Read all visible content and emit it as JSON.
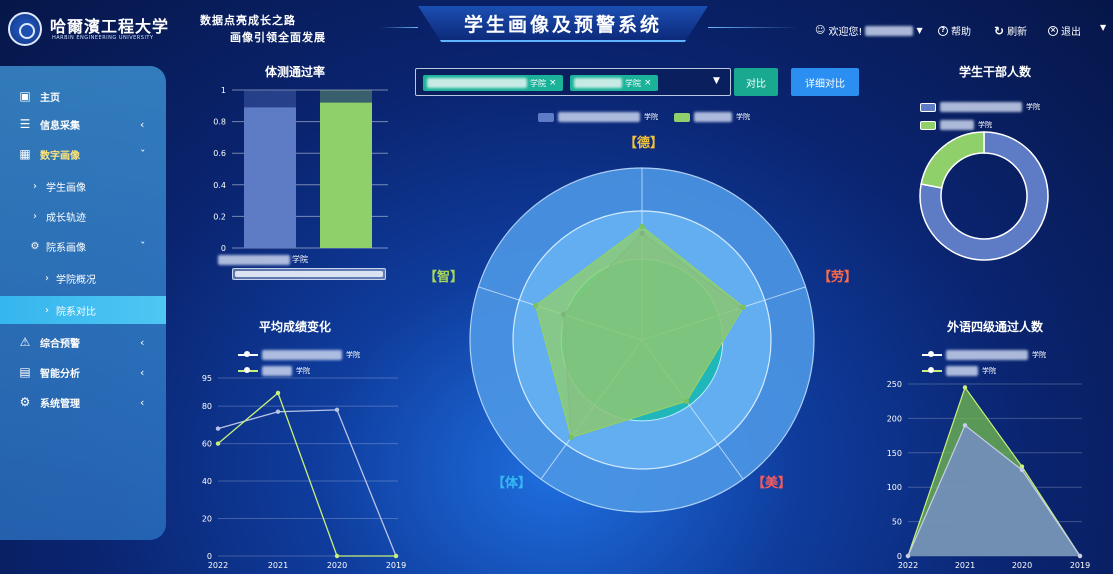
{
  "header": {
    "university_cn": "哈爾濱工程大学",
    "university_en": "HARBIN ENGINEERING UNIVERSITY",
    "slogan_line1": "数据点亮成长之路",
    "slogan_line2": "画像引领全面发展",
    "system_title": "学生画像及预警系统",
    "welcome": "欢迎您!",
    "help": "帮助",
    "refresh": "刷新",
    "logout": "退出"
  },
  "sidebar": {
    "home": "主页",
    "info_collect": "信息采集",
    "digital_portrait": "数字画像",
    "student_portrait": "学生画像",
    "growth_track": "成长轨迹",
    "dept_portrait": "院系画像",
    "dept_overview": "学院概况",
    "dept_compare": "院系对比",
    "warning": "综合预警",
    "analysis": "智能分析",
    "system_mgmt": "系统管理"
  },
  "compare_bar": {
    "tag1_suffix": "学院",
    "tag2_suffix": "学院",
    "compare_button": "对比",
    "detail_button": "详细对比"
  },
  "colors": {
    "series1": "#5e7bc6",
    "series2": "#8fd06b",
    "accent": "#1bb29a"
  },
  "pass_rate": {
    "title": "体测通过率",
    "x_label_suffix": "学院",
    "chart_data": {
      "type": "bar",
      "ylim": [
        0,
        1
      ],
      "yticks": [
        "0",
        "0.2",
        "0.4",
        "0.6",
        "0.8",
        "1"
      ],
      "series": [
        {
          "name": "学院",
          "value": 0.89
        },
        {
          "name": "学院",
          "value": 0.92
        }
      ]
    }
  },
  "avg_score": {
    "title": "平均成绩变化",
    "legend1_suffix": "学院",
    "legend2_suffix": "学院",
    "chart_data": {
      "type": "line",
      "x": [
        "2022",
        "2021",
        "2020",
        "2019"
      ],
      "yticks": [
        "0",
        "20",
        "40",
        "60",
        "80",
        "95"
      ],
      "ylim": [
        0,
        95
      ],
      "series": [
        {
          "name": "学院",
          "values": [
            68,
            77,
            78,
            0
          ]
        },
        {
          "name": "学院",
          "values": [
            60,
            87,
            0,
            0
          ]
        }
      ]
    }
  },
  "radar": {
    "legend1_suffix": "学院",
    "legend2_suffix": "学院",
    "labels": {
      "de": "【德】",
      "lao": "【劳】",
      "mei": "【美】",
      "ti": "【体】",
      "zhi": "【智】"
    },
    "chart_data": {
      "type": "radar",
      "axes": [
        "德",
        "劳",
        "美",
        "体",
        "智"
      ],
      "max": 100,
      "series": [
        {
          "name": "学院",
          "values": [
            62,
            61,
            44,
            70,
            48
          ]
        },
        {
          "name": "学院",
          "values": [
            66,
            62,
            44,
            70,
            65
          ]
        }
      ]
    }
  },
  "cadres": {
    "title": "学生干部人数",
    "legend1_suffix": "学院",
    "legend2_suffix": "学院",
    "chart_data": {
      "type": "pie",
      "values": [
        78,
        22
      ]
    }
  },
  "cet4": {
    "title": "外语四级通过人数",
    "legend1_suffix": "学院",
    "legend2_suffix": "学院",
    "chart_data": {
      "type": "area",
      "x": [
        "2022",
        "2021",
        "2020",
        "2019"
      ],
      "yticks": [
        "0",
        "50",
        "100",
        "150",
        "200",
        "250"
      ],
      "ylim": [
        0,
        250
      ],
      "series": [
        {
          "name": "学院",
          "values": [
            0,
            190,
            125,
            0
          ]
        },
        {
          "name": "学院",
          "values": [
            0,
            245,
            130,
            0
          ]
        }
      ]
    }
  }
}
